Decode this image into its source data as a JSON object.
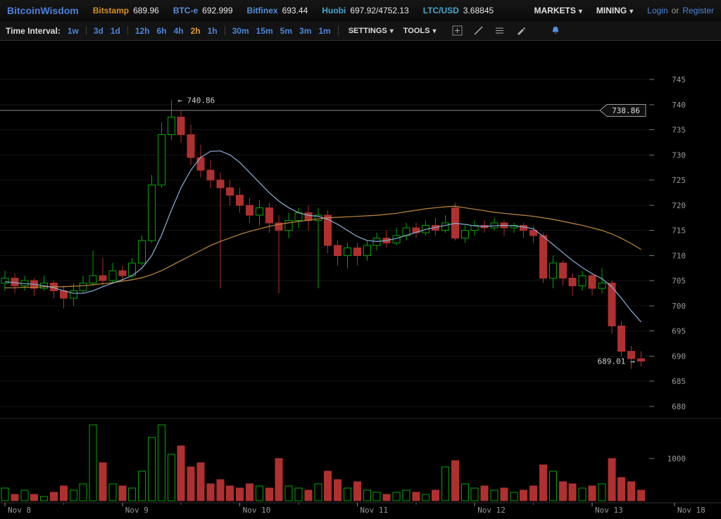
{
  "header": {
    "logo": "BitcoinWisdom",
    "tickers": [
      {
        "label": "Bitstamp",
        "value": "689.96"
      },
      {
        "label": "BTC-e",
        "value": "692.999"
      },
      {
        "label": "Bitfinex",
        "value": "693.44"
      },
      {
        "label": "Huobi",
        "value": "697.92/4752.13"
      },
      {
        "label": "LTC/USD",
        "value": "3.68845"
      }
    ],
    "menus": [
      {
        "label": "MARKETS"
      },
      {
        "label": "MINING"
      }
    ],
    "auth": {
      "login": "Login",
      "or": "or",
      "register": "Register"
    }
  },
  "toolbar": {
    "time_interval_label": "Time Interval:",
    "intervals": [
      {
        "label": "1w"
      },
      {
        "label": "3d"
      },
      {
        "label": "1d"
      },
      {
        "label": "12h"
      },
      {
        "label": "6h"
      },
      {
        "label": "4h"
      },
      {
        "label": "2h",
        "selected": true
      },
      {
        "label": "1h"
      },
      {
        "label": "30m"
      },
      {
        "label": "15m"
      },
      {
        "label": "5m"
      },
      {
        "label": "3m"
      },
      {
        "label": "1m"
      }
    ],
    "settings_label": "SETTINGS",
    "tools_label": "TOOLS",
    "icons": [
      "add-icon",
      "trendline-icon",
      "horizontal-lines-icon",
      "pencil-icon",
      "bell-icon"
    ]
  },
  "colors": {
    "up": "#00a800",
    "down": "#b03030",
    "accent_blue": "#4a86d8",
    "interval_selected": "#e09a2d",
    "axis_text": "#999999"
  },
  "chart_data": {
    "type": "candlestick",
    "interval": "2h",
    "price_axis": {
      "top_price": 745,
      "bottom_price": 680,
      "ticks": [
        745,
        740,
        735,
        730,
        725,
        720,
        715,
        710,
        705,
        700,
        695,
        690,
        685,
        680
      ]
    },
    "volume_axis": {
      "ticks": [
        1000
      ]
    },
    "time_axis": {
      "labels": [
        {
          "text": "Nov 8",
          "candle_index": 0
        },
        {
          "text": "Nov 9",
          "candle_index": 12
        },
        {
          "text": "Nov 10",
          "candle_index": 24
        },
        {
          "text": "Nov 11",
          "candle_index": 36
        },
        {
          "text": "Nov 12",
          "candle_index": 48
        },
        {
          "text": "Nov 13",
          "candle_index": 60
        }
      ],
      "edge_label": "Nov 18"
    },
    "annotations": {
      "high_label": "← 740.86",
      "high_value": 740.86,
      "last_label": "689.01 →",
      "last_value": 689.01,
      "price_line": {
        "value": 738.86,
        "tag": "738.86"
      }
    },
    "candles": [
      [
        704.5,
        707,
        703,
        705.5
      ],
      [
        705.5,
        706.5,
        702.5,
        704
      ],
      [
        704,
        706,
        703,
        705
      ],
      [
        705,
        705.5,
        702,
        703.5
      ],
      [
        703.5,
        706,
        703,
        704.5
      ],
      [
        704.5,
        705,
        701.5,
        703
      ],
      [
        703,
        704,
        699.5,
        701.5
      ],
      [
        701.5,
        704.5,
        700,
        703
      ],
      [
        703,
        706,
        702.5,
        704.5
      ],
      [
        704.5,
        711,
        704,
        706
      ],
      [
        706,
        709.5,
        704,
        705
      ],
      [
        705,
        708.5,
        704.5,
        707
      ],
      [
        707,
        708,
        705,
        706
      ],
      [
        706,
        709.5,
        705.5,
        708.5
      ],
      [
        708.5,
        714,
        708,
        713
      ],
      [
        713,
        726,
        712.5,
        724
      ],
      [
        724,
        736.5,
        723.5,
        734
      ],
      [
        734,
        740.86,
        733,
        737.5
      ],
      [
        737.5,
        739,
        732.5,
        734
      ],
      [
        734,
        736,
        728,
        729.5
      ],
      [
        729.5,
        732,
        725.5,
        727
      ],
      [
        727,
        729,
        723.5,
        725
      ],
      [
        725,
        726.5,
        703.5,
        723.5
      ],
      [
        723.5,
        725,
        720,
        722
      ],
      [
        722,
        723.5,
        718.5,
        720
      ],
      [
        720,
        721.5,
        716.5,
        718
      ],
      [
        718,
        721,
        716,
        719.5
      ],
      [
        719.5,
        720.5,
        714.5,
        716.5
      ],
      [
        716.5,
        718,
        702.5,
        715
      ],
      [
        715,
        718.5,
        713.5,
        717
      ],
      [
        717,
        719.5,
        715.5,
        718.5
      ],
      [
        718.5,
        720,
        715,
        717
      ],
      [
        717,
        719.5,
        703.5,
        718
      ],
      [
        718,
        719,
        710.5,
        712
      ],
      [
        712,
        713,
        708,
        710
      ],
      [
        710,
        712.5,
        707.5,
        711.5
      ],
      [
        711.5,
        712.5,
        708,
        710
      ],
      [
        710,
        713,
        709,
        712
      ],
      [
        712,
        714.5,
        711,
        713.5
      ],
      [
        713.5,
        715,
        711.5,
        712.5
      ],
      [
        712.5,
        715.5,
        712,
        714
      ],
      [
        714,
        716.5,
        713,
        715.5
      ],
      [
        715.5,
        716.5,
        713.5,
        714.5
      ],
      [
        714.5,
        717,
        714,
        716
      ],
      [
        716,
        717.5,
        714,
        715
      ],
      [
        715,
        718,
        714.5,
        716.5
      ],
      [
        719.5,
        720.5,
        713,
        713.5
      ],
      [
        713.5,
        716,
        712.5,
        715
      ],
      [
        715,
        717,
        714,
        716
      ],
      [
        716,
        717,
        714.5,
        715.5
      ],
      [
        715.5,
        717.5,
        715,
        716.5
      ],
      [
        716.5,
        717,
        714,
        715.5
      ],
      [
        715.5,
        716.5,
        714.5,
        716
      ],
      [
        716,
        716.5,
        713.5,
        715
      ],
      [
        715,
        716,
        712.5,
        714
      ],
      [
        714,
        714.5,
        704.5,
        705.5
      ],
      [
        705.5,
        710,
        703.5,
        708.5
      ],
      [
        708.5,
        709,
        704,
        705.5
      ],
      [
        705.5,
        706.5,
        702,
        704
      ],
      [
        704,
        707,
        703,
        706
      ],
      [
        706,
        706.5,
        702,
        703.5
      ],
      [
        703.5,
        707.5,
        702.5,
        704.5
      ],
      [
        704.5,
        705,
        694.5,
        696
      ],
      [
        696,
        697,
        690,
        691
      ],
      [
        691,
        692,
        687.5,
        689.5
      ],
      [
        689.5,
        691,
        688,
        689.01
      ]
    ],
    "volumes": [
      300,
      150,
      250,
      150,
      100,
      200,
      350,
      250,
      400,
      1800,
      900,
      400,
      350,
      300,
      700,
      1500,
      1800,
      1100,
      1300,
      800,
      900,
      400,
      500,
      350,
      300,
      400,
      350,
      300,
      1000,
      350,
      300,
      250,
      400,
      700,
      500,
      300,
      450,
      250,
      200,
      150,
      200,
      250,
      200,
      150,
      250,
      800,
      950,
      400,
      300,
      350,
      250,
      300,
      200,
      250,
      350,
      850,
      700,
      450,
      400,
      300,
      350,
      400,
      1000,
      550,
      450,
      250
    ],
    "ma_fast": {
      "name": "fast moving average",
      "color": "#8cb0d9",
      "values": [
        704.8,
        704.6,
        704.4,
        704.3,
        704.0,
        703.6,
        703.0,
        702.5,
        702.5,
        703.0,
        703.8,
        704.5,
        705.2,
        706.0,
        707.5,
        710.0,
        714.0,
        719.0,
        723.5,
        727.0,
        729.5,
        730.7,
        730.8,
        730.0,
        728.5,
        726.5,
        724.5,
        722.5,
        720.8,
        719.5,
        718.5,
        718.0,
        717.8,
        717.2,
        716.2,
        715.0,
        713.8,
        713.0,
        712.8,
        713.0,
        713.4,
        714.0,
        714.6,
        715.2,
        715.6,
        716.0,
        716.4,
        716.2,
        715.9,
        715.8,
        715.9,
        716.0,
        715.9,
        715.7,
        715.3,
        713.8,
        712.2,
        710.6,
        709.0,
        707.6,
        706.4,
        705.4,
        703.8,
        701.5,
        699.0,
        696.8
      ]
    },
    "ma_slow": {
      "name": "slow moving average",
      "color": "#c28a3a",
      "values": [
        703.6,
        703.6,
        703.7,
        703.7,
        703.8,
        703.8,
        703.8,
        703.9,
        704.0,
        704.2,
        704.4,
        704.6,
        704.9,
        705.2,
        705.6,
        706.2,
        707.0,
        708.0,
        709.0,
        710.0,
        711.0,
        712.0,
        712.8,
        713.5,
        714.2,
        714.8,
        715.3,
        715.8,
        716.2,
        716.5,
        716.8,
        717.0,
        717.3,
        717.5,
        717.6,
        717.7,
        717.8,
        717.9,
        718.0,
        718.2,
        718.4,
        718.7,
        719.0,
        719.3,
        719.5,
        719.7,
        719.8,
        719.5,
        719.2,
        718.9,
        718.6,
        718.4,
        718.2,
        718.0,
        717.8,
        717.5,
        717.2,
        716.8,
        716.4,
        716.0,
        715.5,
        715.0,
        714.3,
        713.4,
        712.4,
        711.2
      ]
    }
  }
}
